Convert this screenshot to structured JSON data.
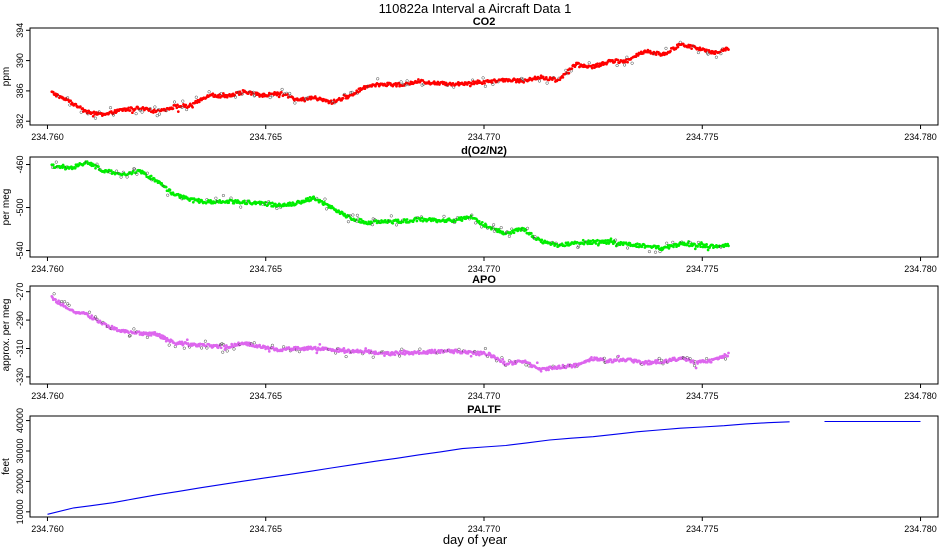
{
  "figure": {
    "title": "110822a   Interval a Aircraft Data 1",
    "xlabel": "day of year"
  },
  "chart_data": [
    {
      "type": "scatter",
      "title": "CO2",
      "ylabel": "ppm",
      "color": "#ff0000",
      "xlim": [
        234.7596,
        234.7804
      ],
      "ylim": [
        381.5,
        394.3
      ],
      "xticks": [
        234.76,
        234.765,
        234.77,
        234.775,
        234.78
      ],
      "xtick_labels": [
        "234.760",
        "234.765",
        "234.770",
        "234.775",
        "234.780"
      ],
      "yticks": [
        382,
        386,
        390,
        394
      ],
      "ytick_labels": [
        "382",
        "386",
        "390",
        "394"
      ],
      "x": [
        234.7601,
        234.7605,
        234.7609,
        234.7613,
        234.7617,
        234.7621,
        234.7625,
        234.7629,
        234.7633,
        234.7637,
        234.7641,
        234.7645,
        234.7649,
        234.7653,
        234.7657,
        234.7661,
        234.7665,
        234.7669,
        234.7673,
        234.7677,
        234.7681,
        234.7685,
        234.7689,
        234.7693,
        234.7697,
        234.7701,
        234.7705,
        234.7709,
        234.7713,
        234.7717,
        234.7721,
        234.7725,
        234.7729,
        234.7733,
        234.7737,
        234.7741,
        234.7745,
        234.7749,
        234.7753,
        234.7756
      ],
      "y": [
        385.8,
        384.6,
        383.2,
        382.8,
        383.5,
        383.7,
        383.3,
        383.9,
        384.1,
        385.5,
        385.2,
        385.9,
        385.4,
        385.7,
        384.9,
        385.1,
        384.5,
        385.3,
        386.6,
        386.9,
        386.8,
        387.3,
        387.0,
        386.9,
        387.1,
        387.2,
        387.5,
        387.3,
        387.8,
        387.4,
        389.5,
        389.2,
        389.9,
        390.0,
        391.3,
        390.8,
        392.1,
        391.6,
        391.0,
        391.6
      ]
    },
    {
      "type": "scatter",
      "title": "d(O2/N2)",
      "ylabel": "per meg",
      "color": "#00ee00",
      "xlim": [
        234.7596,
        234.7804
      ],
      "ylim": [
        -546,
        -453
      ],
      "xticks": [
        234.76,
        234.765,
        234.77,
        234.775,
        234.78
      ],
      "xtick_labels": [
        "234.760",
        "234.765",
        "234.770",
        "234.775",
        "234.780"
      ],
      "yticks": [
        -460,
        -500,
        -540
      ],
      "ytick_labels": [
        "-460",
        "-500",
        "-540"
      ],
      "x": [
        234.7601,
        234.7605,
        234.7609,
        234.7613,
        234.7617,
        234.7621,
        234.7625,
        234.7629,
        234.7633,
        234.7637,
        234.7641,
        234.7645,
        234.7649,
        234.7653,
        234.7657,
        234.7661,
        234.7665,
        234.7669,
        234.7673,
        234.7677,
        234.7681,
        234.7685,
        234.7689,
        234.7693,
        234.7697,
        234.7701,
        234.7705,
        234.7709,
        234.7713,
        234.7717,
        234.7721,
        234.7725,
        234.7729,
        234.7733,
        234.7737,
        234.7741,
        234.7745,
        234.7749,
        234.7753,
        234.7756
      ],
      "y": [
        -461,
        -464,
        -458,
        -466,
        -469,
        -466,
        -475,
        -488,
        -493,
        -495,
        -494,
        -495,
        -496,
        -498,
        -496,
        -491,
        -500,
        -509,
        -514,
        -513,
        -513,
        -511,
        -512,
        -512,
        -509,
        -518,
        -524,
        -520,
        -531,
        -535,
        -533,
        -532,
        -532,
        -534,
        -536,
        -538,
        -534,
        -535,
        -536,
        -535
      ]
    },
    {
      "type": "scatter",
      "title": "APO",
      "ylabel": "approx. per meg",
      "color": "#dd66ee",
      "xlim": [
        234.7596,
        234.7804
      ],
      "ylim": [
        -335,
        -266
      ],
      "xticks": [
        234.76,
        234.765,
        234.77,
        234.775,
        234.78
      ],
      "xtick_labels": [
        "234.760",
        "234.765",
        "234.770",
        "234.775",
        "234.780"
      ],
      "yticks": [
        -270,
        -290,
        -310,
        -330
      ],
      "ytick_labels": [
        "-270",
        "-290",
        "-310",
        "-330"
      ],
      "x": [
        234.7601,
        234.7605,
        234.7609,
        234.7613,
        234.7617,
        234.7621,
        234.7625,
        234.7629,
        234.7633,
        234.7637,
        234.7641,
        234.7645,
        234.7649,
        234.7653,
        234.7657,
        234.7661,
        234.7665,
        234.7669,
        234.7673,
        234.7677,
        234.7681,
        234.7685,
        234.7689,
        234.7693,
        234.7697,
        234.7701,
        234.7705,
        234.7709,
        234.7713,
        234.7717,
        234.7721,
        234.7725,
        234.7729,
        234.7733,
        234.7737,
        234.7741,
        234.7745,
        234.7749,
        234.7753,
        234.7756
      ],
      "y": [
        -274,
        -283,
        -286,
        -293,
        -298,
        -299,
        -300,
        -306,
        -307,
        -308,
        -309,
        -306,
        -309,
        -311,
        -310,
        -310,
        -311,
        -312,
        -312,
        -314,
        -313,
        -313,
        -312,
        -312,
        -313,
        -314,
        -321,
        -319,
        -325,
        -323,
        -322,
        -317,
        -319,
        -318,
        -320,
        -319,
        -317,
        -320,
        -318,
        -314
      ]
    },
    {
      "type": "line",
      "title": "PALTF",
      "ylabel": "feet",
      "color": "#0000ee",
      "xlim": [
        234.7596,
        234.7804
      ],
      "ylim": [
        8300,
        41500
      ],
      "xticks": [
        234.76,
        234.765,
        234.77,
        234.775,
        234.78
      ],
      "xtick_labels": [
        "234.760",
        "234.765",
        "234.770",
        "234.775",
        "234.780"
      ],
      "yticks": [
        10000,
        20000,
        30000,
        40000
      ],
      "ytick_labels": [
        "10000",
        "20000",
        "30000",
        "40000"
      ],
      "x": [
        234.76,
        234.7606,
        234.761,
        234.7615,
        234.762,
        234.7625,
        234.763,
        234.7635,
        234.764,
        234.7645,
        234.765,
        234.7655,
        234.766,
        234.7665,
        234.767,
        234.7675,
        234.768,
        234.7685,
        234.769,
        234.7695,
        234.77,
        234.7705,
        234.771,
        234.7715,
        234.772,
        234.7725,
        234.773,
        234.7735,
        234.774,
        234.7745,
        234.775,
        234.7755,
        234.776,
        234.7765,
        234.777,
        null,
        234.7778,
        234.7785,
        234.7792,
        234.78
      ],
      "y": [
        9200,
        11300,
        12000,
        13000,
        14300,
        15600,
        16700,
        17900,
        19000,
        20100,
        21200,
        22200,
        23300,
        24400,
        25500,
        26600,
        27600,
        28700,
        29700,
        30800,
        31300,
        31800,
        32700,
        33600,
        34200,
        34700,
        35500,
        36300,
        36900,
        37500,
        37900,
        38300,
        38900,
        39300,
        39600,
        null,
        39700,
        39700,
        39700,
        39700
      ]
    }
  ]
}
